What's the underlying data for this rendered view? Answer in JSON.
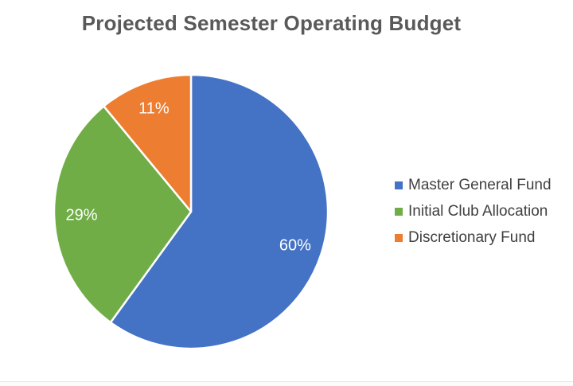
{
  "page": {
    "background": "#ffffff",
    "bottom_divider_color": "#e7e7e7"
  },
  "chart_data": {
    "type": "pie",
    "title": "Projected Semester Operating Budget",
    "categories": [
      "Master General Fund",
      "Initial Club Allocation",
      "Discretionary Fund"
    ],
    "values": [
      60,
      29,
      11
    ],
    "unit": "percent",
    "data_labels": [
      "60%",
      "29%",
      "11%"
    ],
    "colors": [
      "#4472C4",
      "#70AD47",
      "#ED7D31"
    ],
    "slice_border_color": "#ffffff",
    "label_color": "#ffffff",
    "title_color": "#595959",
    "start_angle_deg": 0,
    "direction": "clockwise",
    "legend": {
      "position": "right",
      "text_color": "#404040",
      "items": [
        "Master General Fund",
        "Initial Club Allocation",
        "Discretionary Fund"
      ]
    }
  }
}
